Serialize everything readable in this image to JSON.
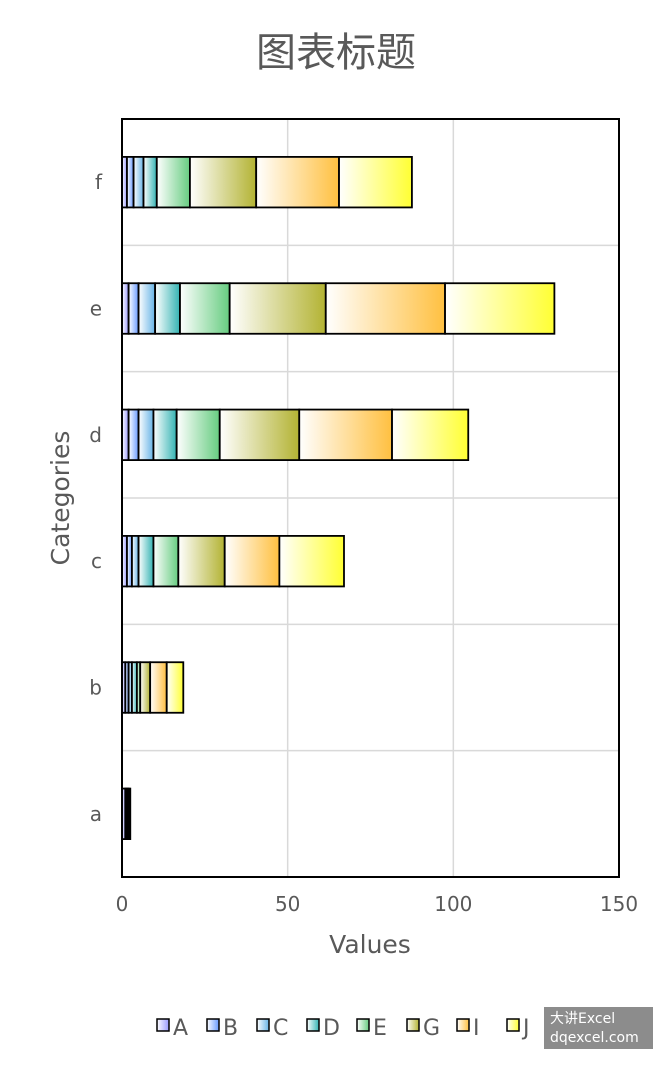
{
  "chart_data": {
    "type": "bar",
    "orientation": "horizontal",
    "stacked": true,
    "title": "图表标题",
    "xlabel": "Values",
    "ylabel": "Categories",
    "xlim": [
      0,
      150
    ],
    "x_ticks": [
      "0",
      "50",
      "100",
      "150"
    ],
    "grid": true,
    "legend_position": "bottom",
    "categories": [
      "a",
      "b",
      "c",
      "d",
      "e",
      "f"
    ],
    "series": [
      {
        "name": "A",
        "color": "#9999ff",
        "values": [
          1,
          1,
          1.5,
          2,
          2,
          1.5
        ]
      },
      {
        "name": "B",
        "color": "#6699ff",
        "values": [
          0.5,
          1,
          1.5,
          3,
          3,
          2
        ]
      },
      {
        "name": "C",
        "color": "#66b3e6",
        "values": [
          0.5,
          1,
          2,
          4.5,
          5,
          3
        ]
      },
      {
        "name": "D",
        "color": "#33b3b3",
        "values": [
          0.5,
          1.5,
          4.5,
          7,
          7.5,
          4
        ]
      },
      {
        "name": "E",
        "color": "#66cc80",
        "values": [
          0,
          1,
          7.5,
          13,
          15,
          10
        ]
      },
      {
        "name": "G",
        "color": "#b3b333",
        "values": [
          0,
          3,
          14,
          24,
          29,
          20
        ]
      },
      {
        "name": "I",
        "color": "#ffc040",
        "values": [
          0,
          5,
          16.5,
          28,
          36,
          25
        ]
      },
      {
        "name": "J",
        "color": "#ffff33",
        "values": [
          0,
          5,
          19.5,
          23,
          33,
          22
        ]
      }
    ]
  },
  "watermark": {
    "line1": "大讲Excel",
    "line2": "dqexcel.com"
  }
}
